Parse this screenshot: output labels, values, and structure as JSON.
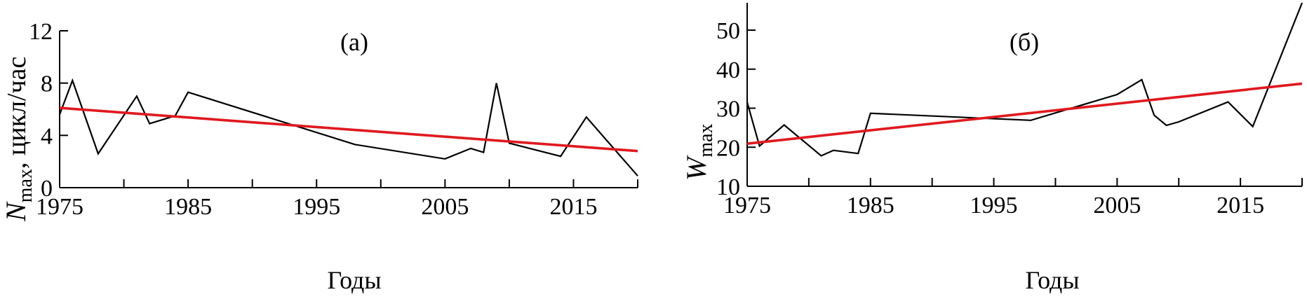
{
  "chart_data": [
    {
      "type": "line",
      "panel_label": "(а)",
      "xlabel": "Годы",
      "ylabel_main": "N",
      "ylabel_sub": "max",
      "ylabel_unit": ", цикл/час",
      "xlim": [
        1975,
        2020
      ],
      "ylim": [
        0,
        12
      ],
      "xticks": [
        1975,
        1980,
        1985,
        1990,
        1995,
        2000,
        2005,
        2010,
        2015,
        2020
      ],
      "xtick_labels": [
        "1975",
        "1985",
        "1995",
        "2005",
        "2015"
      ],
      "yticks": [
        0,
        4,
        8,
        12
      ],
      "ytick_labels": [
        "0",
        "4",
        "8",
        "12"
      ],
      "series": [
        {
          "color": "#000000",
          "x": [
            1975,
            1976,
            1978,
            1981,
            1982,
            1984,
            1985,
            1998,
            2005,
            2007,
            2008,
            2009,
            2010,
            2014,
            2016,
            2020
          ],
          "y": [
            5.6,
            8.2,
            2.6,
            7.0,
            4.9,
            5.5,
            7.3,
            3.3,
            2.2,
            3.0,
            2.7,
            8.0,
            3.4,
            2.4,
            5.4,
            0.9
          ]
        },
        {
          "color": "#e0191f",
          "x": [
            1975,
            2020
          ],
          "y": [
            6.1,
            2.8
          ]
        }
      ]
    },
    {
      "type": "line",
      "panel_label": "(б)",
      "xlabel": "Годы",
      "ylabel_main": "W",
      "ylabel_sub": "max",
      "ylabel_unit": "",
      "xlim": [
        1975,
        2020
      ],
      "ylim": [
        10,
        57
      ],
      "xticks": [
        1975,
        1980,
        1985,
        1990,
        1995,
        2000,
        2005,
        2010,
        2015,
        2020
      ],
      "xtick_labels": [
        "1975",
        "1985",
        "1995",
        "2005",
        "2015"
      ],
      "yticks": [
        10,
        20,
        30,
        40,
        50
      ],
      "ytick_labels": [
        "10",
        "20",
        "30",
        "40",
        "50"
      ],
      "series": [
        {
          "color": "#000000",
          "x": [
            1975,
            1976,
            1978,
            1981,
            1982,
            1984,
            1985,
            1998,
            2005,
            2007,
            2008,
            2009,
            2010,
            2014,
            2016,
            2020
          ],
          "y": [
            31.5,
            20.3,
            25.7,
            17.8,
            19.2,
            18.4,
            28.7,
            26.9,
            33.5,
            37.3,
            28.2,
            25.6,
            26.5,
            31.6,
            25.3,
            57.0
          ]
        },
        {
          "color": "#e0191f",
          "x": [
            1975,
            2020
          ],
          "y": [
            20.9,
            36.3
          ]
        }
      ]
    }
  ]
}
